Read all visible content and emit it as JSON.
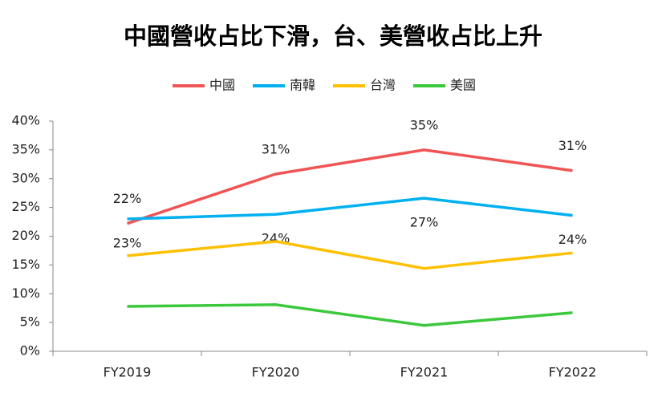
{
  "chart_data": {
    "type": "line",
    "title": "中國營收占比下滑，台、美營收占比上升",
    "categories": [
      "FY2019",
      "FY2020",
      "FY2021",
      "FY2022"
    ],
    "series": [
      {
        "name": "中國",
        "color": "#f05454",
        "values": [
          22.2,
          30.8,
          35.0,
          31.4
        ],
        "value_labels": [
          "22%",
          "31%",
          "35%",
          "31%"
        ]
      },
      {
        "name": "南韓",
        "color": "#00b0f0",
        "values": [
          23.0,
          23.8,
          26.6,
          23.6
        ],
        "value_labels": [
          "23%",
          "24%",
          "27%",
          "24%"
        ]
      },
      {
        "name": "台灣",
        "color": "#ffc000",
        "values": [
          16.6,
          19.1,
          14.4,
          17.1
        ]
      },
      {
        "name": "美國",
        "color": "#3cc83c",
        "values": [
          7.8,
          8.1,
          4.5,
          6.7
        ]
      }
    ],
    "ylim": [
      0,
      40
    ],
    "yticks": [
      {
        "value": 0,
        "label": "0%"
      },
      {
        "value": 5,
        "label": "5%"
      },
      {
        "value": 10,
        "label": "10%"
      },
      {
        "value": 15,
        "label": "15%"
      },
      {
        "value": 20,
        "label": "20%"
      },
      {
        "value": 25,
        "label": "25%"
      },
      {
        "value": 30,
        "label": "30%"
      },
      {
        "value": 35,
        "label": "35%"
      },
      {
        "value": 40,
        "label": "40%"
      }
    ],
    "legend": "top",
    "grid": false
  }
}
